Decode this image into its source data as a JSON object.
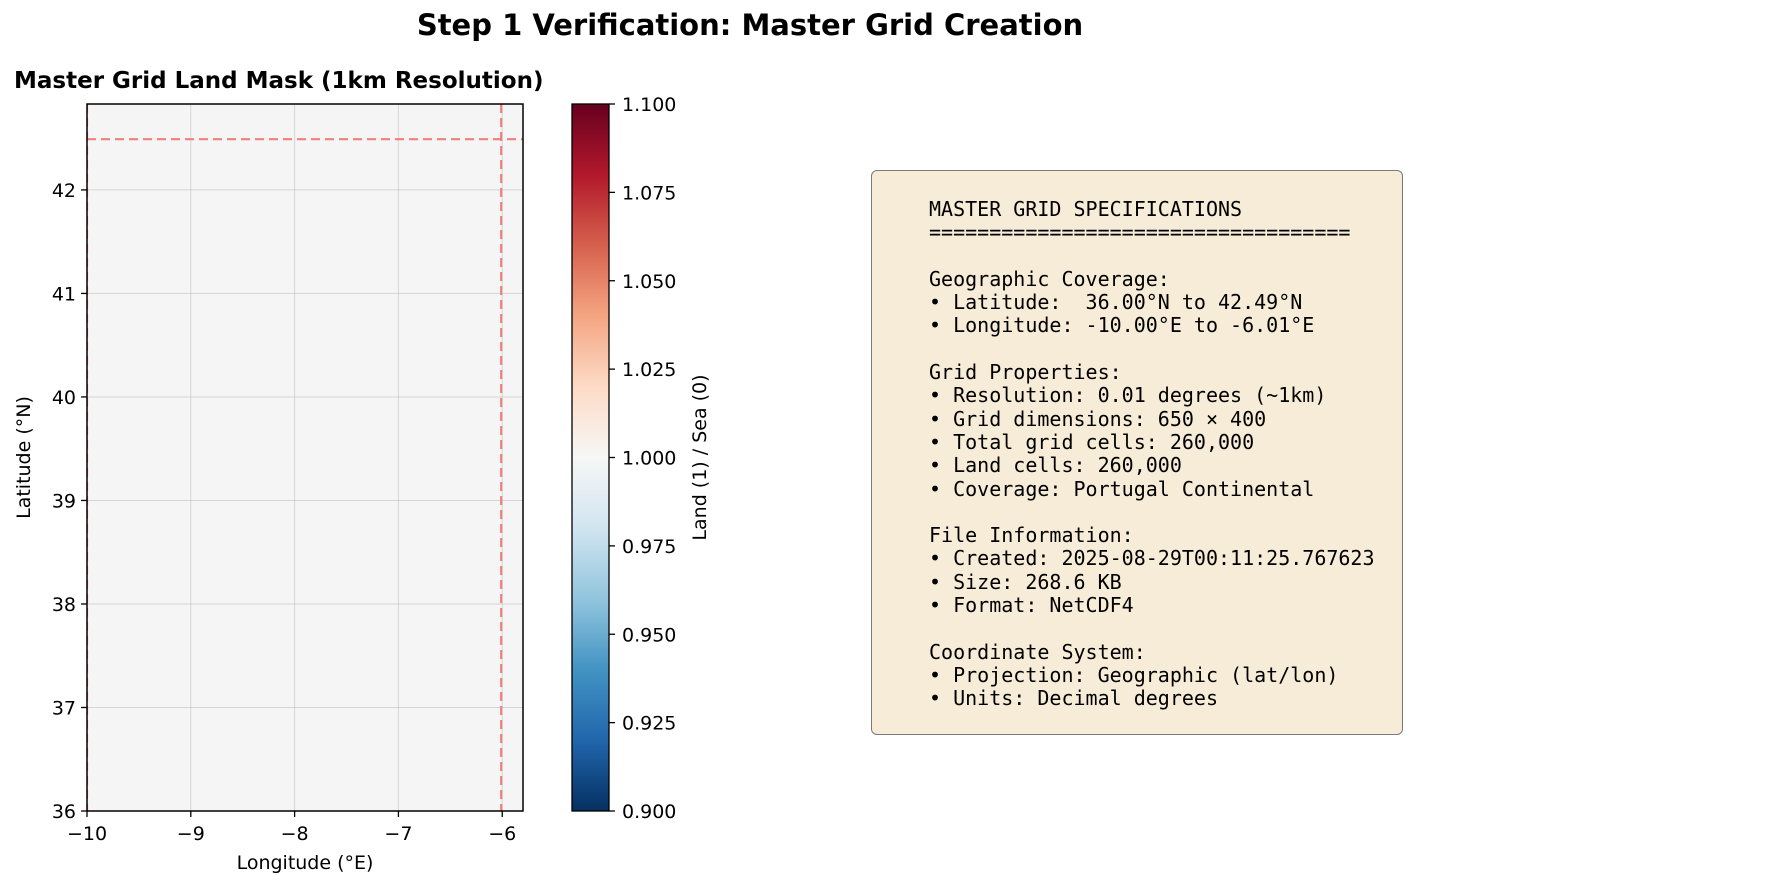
{
  "figure": {
    "suptitle": "Step 1 Verification: Master Grid Creation"
  },
  "chart_data": [
    {
      "type": "heatmap",
      "title": "Master Grid Land Mask (1km Resolution)",
      "xlabel": "Longitude (°E)",
      "ylabel": "Latitude (°N)",
      "xlim": [
        -10.0,
        -5.8
      ],
      "ylim": [
        36.0,
        42.83
      ],
      "x_ticks": [
        -10,
        -9,
        -8,
        -7,
        -6
      ],
      "x_tick_labels": [
        "−10",
        "−9",
        "−8",
        "−7",
        "−6"
      ],
      "y_ticks": [
        36,
        37,
        38,
        39,
        40,
        41,
        42
      ],
      "y_tick_labels": [
        "36",
        "37",
        "38",
        "39",
        "40",
        "41",
        "42"
      ],
      "grid": true,
      "field": {
        "value": 1.0,
        "extent_lon": [
          -10.0,
          -5.8
        ],
        "extent_lat": [
          36.0,
          42.83
        ],
        "fill": "#f5f5f5"
      },
      "boundary_lines": {
        "lon": [
          -10.0,
          -6.01
        ],
        "lat": [
          42.49
        ],
        "color": "#f07f7f",
        "style": "dashed"
      },
      "colorbar": {
        "label": "Land (1) / Sea (0)",
        "range": [
          0.9,
          1.1
        ],
        "ticks": [
          0.9,
          0.925,
          0.95,
          0.975,
          1.0,
          1.025,
          1.05,
          1.075,
          1.1
        ],
        "tick_labels": [
          "0.900",
          "0.925",
          "0.950",
          "0.975",
          "1.000",
          "1.025",
          "1.050",
          "1.075",
          "1.100"
        ],
        "colormap": "RdBu_r",
        "stops": [
          "#053061",
          "#2166ac",
          "#4393c3",
          "#92c5de",
          "#d1e5f0",
          "#f7f7f7",
          "#fddbc7",
          "#f4a582",
          "#d6604d",
          "#b2182b",
          "#67001f"
        ]
      }
    }
  ],
  "specs": {
    "lines": [
      "MASTER GRID SPECIFICATIONS",
      "===================================",
      "",
      "Geographic Coverage:",
      "• Latitude:  36.00°N to 42.49°N",
      "• Longitude: -10.00°E to -6.01°E",
      "",
      "Grid Properties:",
      "• Resolution: 0.01 degrees (~1km)",
      "• Grid dimensions: 650 × 400",
      "• Total grid cells: 260,000",
      "• Land cells: 260,000",
      "• Coverage: Portugal Continental",
      "",
      "File Information:",
      "• Created: 2025-08-29T00:11:25.767623",
      "• Size: 268.6 KB",
      "• Format: NetCDF4",
      "",
      "Coordinate System:",
      "• Projection: Geographic (lat/lon)",
      "• Units: Decimal degrees"
    ]
  }
}
